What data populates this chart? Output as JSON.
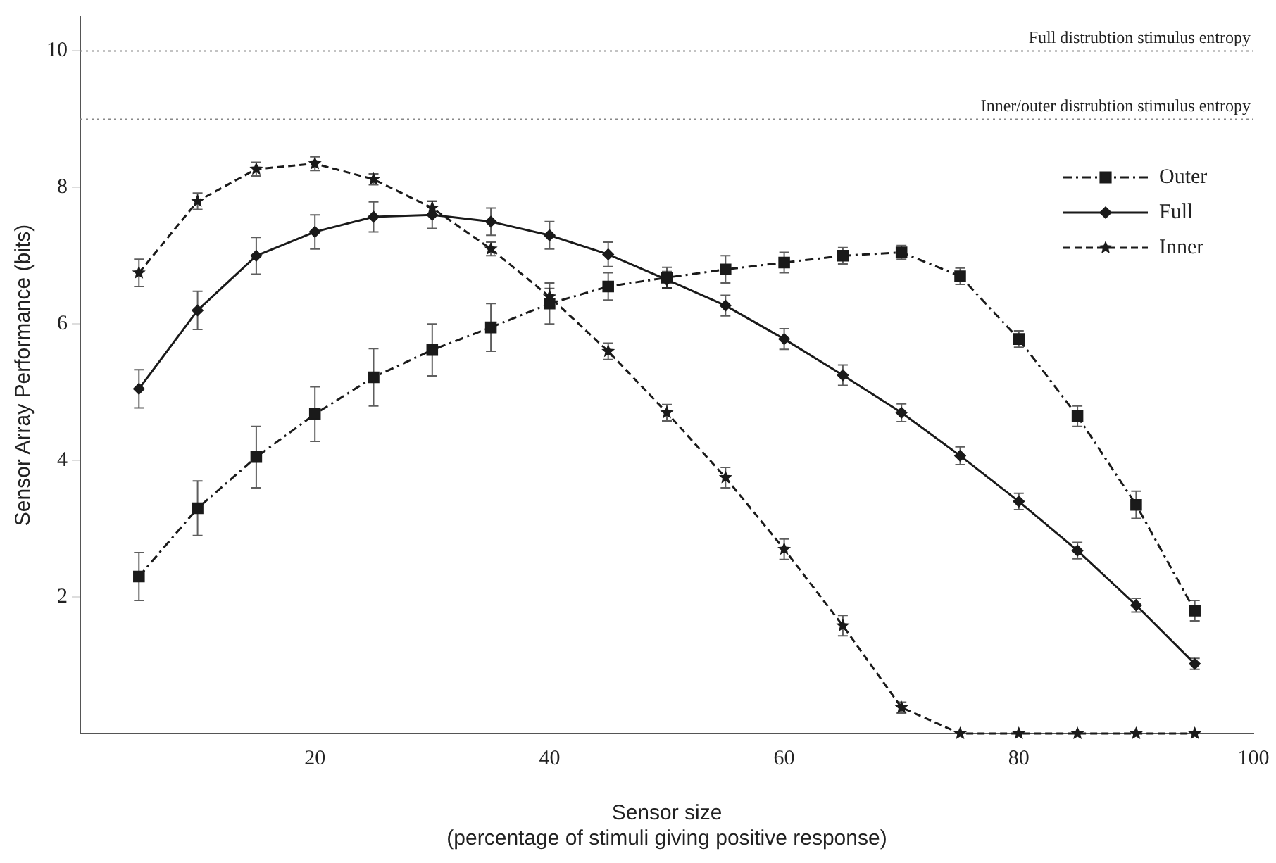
{
  "chart_data": {
    "type": "line",
    "xlabel": "Sensor size\n(percentage of stimuli giving positive response)",
    "ylabel": "Sensor Array Performance (bits)",
    "x": [
      5,
      10,
      15,
      20,
      25,
      30,
      35,
      40,
      45,
      50,
      55,
      60,
      65,
      70,
      75,
      80,
      85,
      90,
      95
    ],
    "xlim": [
      0,
      100
    ],
    "xticks": [
      20,
      40,
      60,
      80,
      100
    ],
    "ylim": [
      0,
      10.5
    ],
    "yticks": [
      2,
      4,
      6,
      8,
      10
    ],
    "grid": false,
    "legend": "top right",
    "series": [
      {
        "name": "Outer",
        "color": "#1a1a1a",
        "marker": "square",
        "line_style": "dashdot",
        "values": [
          2.3,
          3.3,
          4.05,
          4.68,
          5.22,
          5.62,
          5.95,
          6.3,
          6.55,
          6.68,
          6.8,
          6.9,
          7.0,
          7.05,
          6.7,
          5.78,
          4.65,
          3.35,
          1.8
        ],
        "errors": [
          0.35,
          0.4,
          0.45,
          0.4,
          0.42,
          0.38,
          0.35,
          0.3,
          0.2,
          0.15,
          0.2,
          0.15,
          0.12,
          0.1,
          0.12,
          0.12,
          0.15,
          0.2,
          0.15
        ]
      },
      {
        "name": "Full",
        "color": "#1a1a1a",
        "marker": "diamond",
        "line_style": "solid",
        "values": [
          5.05,
          6.2,
          7.0,
          7.35,
          7.57,
          7.6,
          7.5,
          7.3,
          7.02,
          6.65,
          6.27,
          5.78,
          5.25,
          4.7,
          4.07,
          3.4,
          2.68,
          1.88,
          1.02
        ],
        "errors": [
          0.28,
          0.28,
          0.27,
          0.25,
          0.22,
          0.2,
          0.2,
          0.2,
          0.18,
          0.12,
          0.15,
          0.15,
          0.15,
          0.13,
          0.13,
          0.12,
          0.12,
          0.1,
          0.08
        ]
      },
      {
        "name": "Inner",
        "color": "#1a1a1a",
        "marker": "star",
        "line_style": "dashed",
        "values": [
          6.75,
          7.8,
          8.27,
          8.35,
          8.12,
          7.7,
          7.1,
          6.4,
          5.6,
          4.7,
          3.75,
          2.7,
          1.58,
          0.38,
          0,
          0,
          0,
          0,
          0
        ],
        "errors": [
          0.2,
          0.12,
          0.1,
          0.1,
          0.08,
          0.1,
          0.1,
          0.12,
          0.12,
          0.12,
          0.15,
          0.15,
          0.15,
          0.08,
          null,
          null,
          null,
          null,
          null
        ]
      }
    ],
    "ref_lines": [
      {
        "axis": "y",
        "value": 10,
        "label": "Full distrubtion stimulus entropy",
        "color": "#888888",
        "line_style": "dotted"
      },
      {
        "axis": "y",
        "value": 9,
        "label": "Inner/outer distrubtion stimulus entropy",
        "color": "#888888",
        "line_style": "dotted"
      }
    ]
  }
}
